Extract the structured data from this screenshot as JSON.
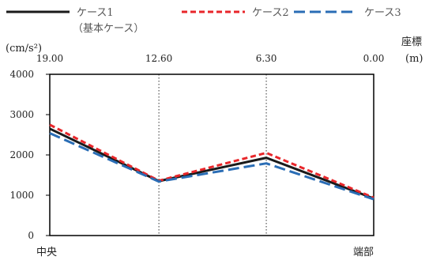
{
  "chart_data": {
    "type": "line",
    "ylabel": "(cm/s²)",
    "xlabel": "座標",
    "xunit": "(m)",
    "x": [
      19.0,
      12.6,
      6.3,
      0.0
    ],
    "x_tick_labels": [
      "19.00",
      "12.60",
      "6.30",
      "0.00"
    ],
    "ylim": [
      0,
      4000
    ],
    "y_ticks": [
      0,
      1000,
      2000,
      3000,
      4000
    ],
    "y_tick_labels": [
      "0",
      "1000",
      "2000",
      "3000",
      "4000"
    ],
    "bottom_labels": {
      "left": "中央",
      "right": "端部"
    },
    "grid": "vertical dotted",
    "legend_position": "top",
    "series": [
      {
        "name": "ケース1",
        "name_note": "（基本ケース）",
        "values": [
          2650,
          1350,
          1930,
          920
        ],
        "color": "#1a1a1a",
        "dash": "solid"
      },
      {
        "name": "ケース2",
        "values": [
          2750,
          1360,
          2050,
          940
        ],
        "color": "#e8262a",
        "dash": "short"
      },
      {
        "name": "ケース3",
        "values": [
          2540,
          1340,
          1790,
          900
        ],
        "color": "#2a6db5",
        "dash": "long"
      }
    ]
  }
}
